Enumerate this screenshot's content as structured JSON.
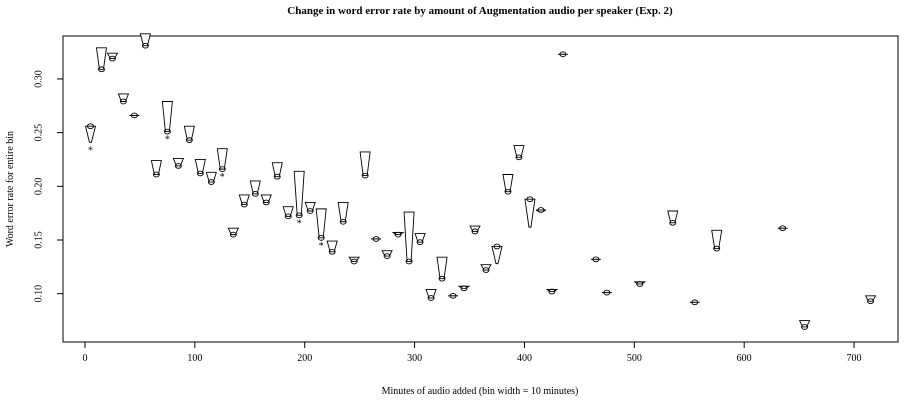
{
  "chart_data": {
    "type": "scatter",
    "title": "Change in word error rate by amount of Augmentation audio per speaker (Exp. 2)",
    "xlabel": "Minutes of audio added (bin width = 10 minutes)",
    "ylabel": "Word error rate for entire bin",
    "xlim": [
      -20,
      740
    ],
    "ylim": [
      0.055,
      0.34
    ],
    "x_ticks": [
      0,
      100,
      200,
      300,
      400,
      500,
      600,
      700
    ],
    "y_ticks": [
      0.1,
      0.15,
      0.2,
      0.25,
      0.3
    ],
    "y_tick_labels": [
      "0.10",
      "0.15",
      "0.20",
      "0.25",
      "0.30"
    ],
    "grid": false,
    "legend": "none",
    "marker": "circle with range glyph",
    "significance_marker": "*",
    "points": [
      {
        "x": 5,
        "y": 0.256,
        "hi": 0.256,
        "lo": 0.241,
        "sig": true
      },
      {
        "x": 15,
        "y": 0.309,
        "hi": 0.329,
        "lo": 0.309,
        "sig": false
      },
      {
        "x": 25,
        "y": 0.319,
        "hi": 0.324,
        "lo": 0.319,
        "sig": false
      },
      {
        "x": 35,
        "y": 0.279,
        "hi": 0.286,
        "lo": 0.279,
        "sig": false
      },
      {
        "x": 45,
        "y": 0.266,
        "hi": 0.266,
        "lo": 0.266,
        "sig": false
      },
      {
        "x": 55,
        "y": 0.331,
        "hi": 0.342,
        "lo": 0.331,
        "sig": false
      },
      {
        "x": 65,
        "y": 0.211,
        "hi": 0.224,
        "lo": 0.211,
        "sig": false
      },
      {
        "x": 75,
        "y": 0.251,
        "hi": 0.279,
        "lo": 0.251,
        "sig": true
      },
      {
        "x": 85,
        "y": 0.219,
        "hi": 0.226,
        "lo": 0.219,
        "sig": false
      },
      {
        "x": 95,
        "y": 0.243,
        "hi": 0.256,
        "lo": 0.243,
        "sig": false
      },
      {
        "x": 105,
        "y": 0.212,
        "hi": 0.225,
        "lo": 0.212,
        "sig": false
      },
      {
        "x": 115,
        "y": 0.204,
        "hi": 0.213,
        "lo": 0.204,
        "sig": false
      },
      {
        "x": 125,
        "y": 0.216,
        "hi": 0.235,
        "lo": 0.216,
        "sig": true
      },
      {
        "x": 135,
        "y": 0.155,
        "hi": 0.161,
        "lo": 0.155,
        "sig": false
      },
      {
        "x": 145,
        "y": 0.183,
        "hi": 0.192,
        "lo": 0.183,
        "sig": false
      },
      {
        "x": 155,
        "y": 0.193,
        "hi": 0.205,
        "lo": 0.193,
        "sig": false
      },
      {
        "x": 165,
        "y": 0.185,
        "hi": 0.192,
        "lo": 0.185,
        "sig": false
      },
      {
        "x": 175,
        "y": 0.209,
        "hi": 0.222,
        "lo": 0.209,
        "sig": false
      },
      {
        "x": 185,
        "y": 0.172,
        "hi": 0.181,
        "lo": 0.172,
        "sig": false
      },
      {
        "x": 195,
        "y": 0.173,
        "hi": 0.214,
        "lo": 0.173,
        "sig": true
      },
      {
        "x": 205,
        "y": 0.177,
        "hi": 0.185,
        "lo": 0.177,
        "sig": false
      },
      {
        "x": 215,
        "y": 0.152,
        "hi": 0.179,
        "lo": 0.152,
        "sig": true
      },
      {
        "x": 225,
        "y": 0.139,
        "hi": 0.149,
        "lo": 0.139,
        "sig": false
      },
      {
        "x": 235,
        "y": 0.167,
        "hi": 0.185,
        "lo": 0.167,
        "sig": false
      },
      {
        "x": 245,
        "y": 0.13,
        "hi": 0.134,
        "lo": 0.13,
        "sig": false
      },
      {
        "x": 255,
        "y": 0.21,
        "hi": 0.232,
        "lo": 0.21,
        "sig": false
      },
      {
        "x": 265,
        "y": 0.151,
        "hi": 0.152,
        "lo": 0.151,
        "sig": false
      },
      {
        "x": 275,
        "y": 0.135,
        "hi": 0.14,
        "lo": 0.135,
        "sig": false
      },
      {
        "x": 285,
        "y": 0.155,
        "hi": 0.157,
        "lo": 0.155,
        "sig": false
      },
      {
        "x": 295,
        "y": 0.13,
        "hi": 0.176,
        "lo": 0.13,
        "sig": false
      },
      {
        "x": 305,
        "y": 0.148,
        "hi": 0.156,
        "lo": 0.148,
        "sig": false
      },
      {
        "x": 315,
        "y": 0.096,
        "hi": 0.104,
        "lo": 0.096,
        "sig": false
      },
      {
        "x": 325,
        "y": 0.114,
        "hi": 0.134,
        "lo": 0.114,
        "sig": false
      },
      {
        "x": 335,
        "y": 0.098,
        "hi": 0.099,
        "lo": 0.098,
        "sig": false
      },
      {
        "x": 345,
        "y": 0.105,
        "hi": 0.107,
        "lo": 0.105,
        "sig": false
      },
      {
        "x": 355,
        "y": 0.158,
        "hi": 0.163,
        "lo": 0.158,
        "sig": false
      },
      {
        "x": 365,
        "y": 0.122,
        "hi": 0.127,
        "lo": 0.122,
        "sig": false
      },
      {
        "x": 375,
        "y": 0.144,
        "hi": 0.144,
        "lo": 0.128,
        "sig": false
      },
      {
        "x": 385,
        "y": 0.195,
        "hi": 0.211,
        "lo": 0.195,
        "sig": false
      },
      {
        "x": 395,
        "y": 0.227,
        "hi": 0.238,
        "lo": 0.227,
        "sig": false
      },
      {
        "x": 405,
        "y": 0.188,
        "hi": 0.188,
        "lo": 0.162,
        "sig": false
      },
      {
        "x": 415,
        "y": 0.178,
        "hi": 0.178,
        "lo": 0.176,
        "sig": false
      },
      {
        "x": 425,
        "y": 0.102,
        "hi": 0.104,
        "lo": 0.102,
        "sig": false
      },
      {
        "x": 435,
        "y": 0.323,
        "hi": 0.324,
        "lo": 0.323,
        "sig": false
      },
      {
        "x": 465,
        "y": 0.132,
        "hi": 0.132,
        "lo": 0.132,
        "sig": false
      },
      {
        "x": 475,
        "y": 0.101,
        "hi": 0.101,
        "lo": 0.101,
        "sig": false
      },
      {
        "x": 505,
        "y": 0.109,
        "hi": 0.111,
        "lo": 0.109,
        "sig": false
      },
      {
        "x": 535,
        "y": 0.166,
        "hi": 0.177,
        "lo": 0.166,
        "sig": false
      },
      {
        "x": 555,
        "y": 0.092,
        "hi": 0.093,
        "lo": 0.092,
        "sig": false
      },
      {
        "x": 575,
        "y": 0.142,
        "hi": 0.159,
        "lo": 0.142,
        "sig": false
      },
      {
        "x": 635,
        "y": 0.161,
        "hi": 0.162,
        "lo": 0.161,
        "sig": false
      },
      {
        "x": 655,
        "y": 0.069,
        "hi": 0.075,
        "lo": 0.069,
        "sig": false
      },
      {
        "x": 715,
        "y": 0.093,
        "hi": 0.098,
        "lo": 0.093,
        "sig": false
      }
    ]
  }
}
